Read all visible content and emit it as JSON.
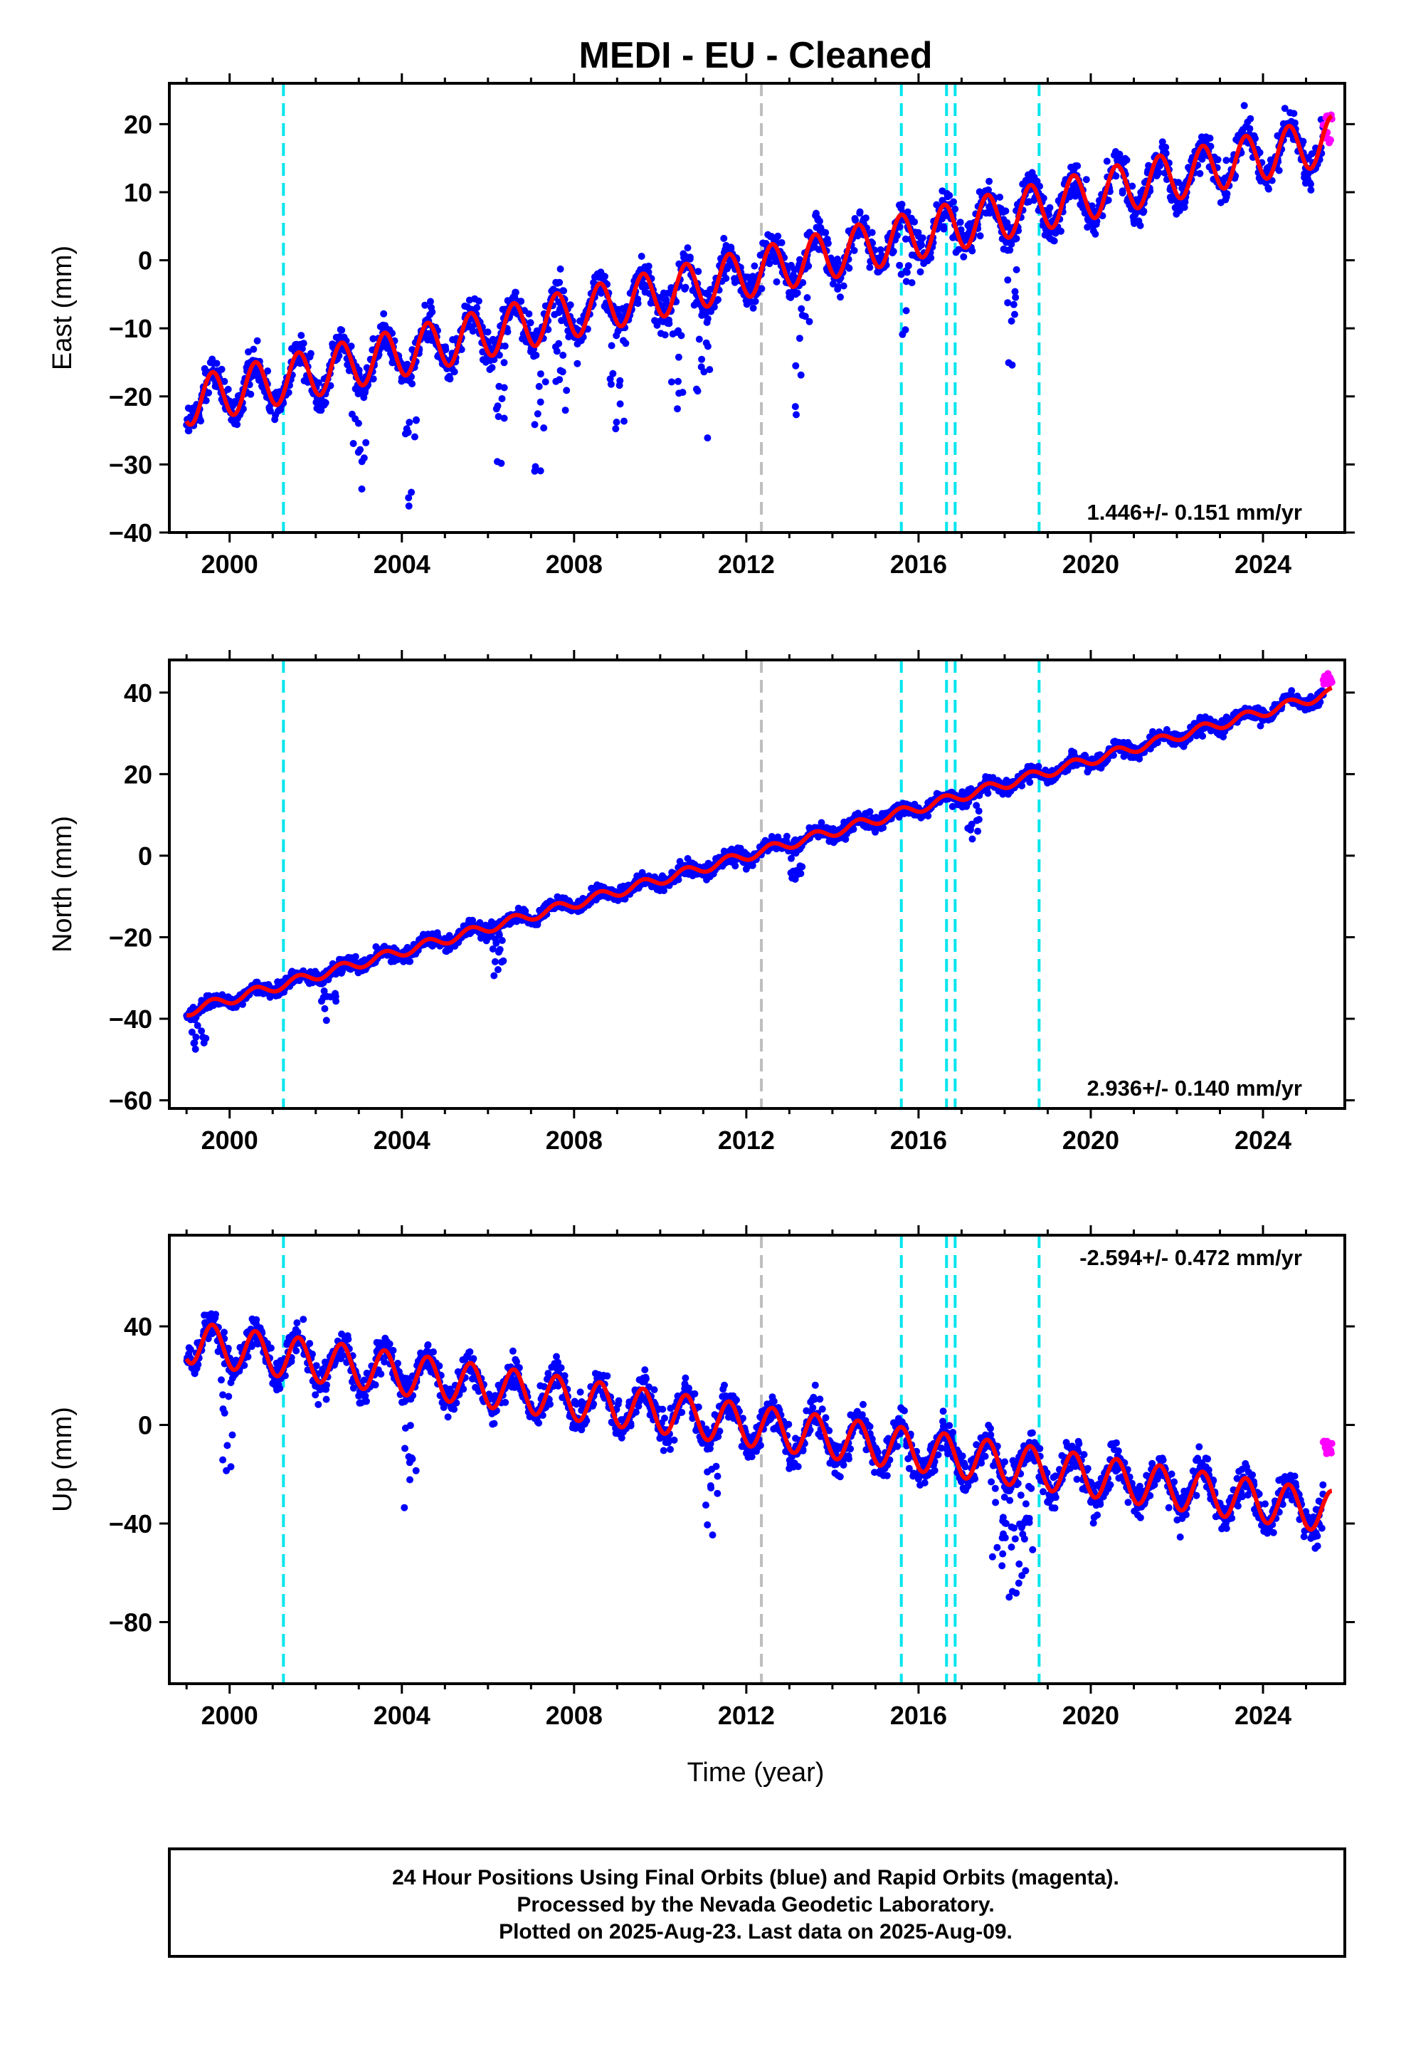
{
  "title": "MEDI  - EU - Cleaned",
  "xlabel": "Time (year)",
  "footer": {
    "line1": "24 Hour Positions Using Final Orbits (blue) and Rapid Orbits (magenta).",
    "line2": "Processed by the Nevada Geodetic Laboratory.",
    "line3": "Plotted on 2025-Aug-23. Last data on 2025-Aug-09."
  },
  "colors": {
    "final": "#0000ff",
    "rapid": "#ff00ff",
    "model": "#ff0000",
    "step_equipment": "#00e5ee",
    "step_other": "#bebebe"
  },
  "chart_data": [
    {
      "type": "scatter",
      "ylabel": "East (mm)",
      "xlim": [
        1998.6,
        2025.9
      ],
      "ylim": [
        -40,
        26
      ],
      "xticks": [
        2000,
        2004,
        2008,
        2012,
        2016,
        2020,
        2024
      ],
      "yticks": [
        -40,
        -30,
        -20,
        -10,
        0,
        10,
        20
      ],
      "rate_label": "1.446+/- 0.151 mm/yr",
      "rate_position": "bottom-right",
      "rate": 1.446,
      "offset_2012": -2.0,
      "annual_amplitude": 3.5,
      "scatter": 2.8,
      "outlier_years": [
        2003,
        2004.2,
        2006.3,
        2007.2,
        2007.7,
        2009,
        2010.4,
        2011,
        2013.3,
        2015.7,
        2018.2
      ],
      "rapid_range": [
        2025.4,
        2025.6
      ],
      "rapid_values": [
        17,
        22
      ],
      "vlines": [
        {
          "x": 2001.25,
          "kind": "equipment"
        },
        {
          "x": 2012.35,
          "kind": "other"
        },
        {
          "x": 2015.6,
          "kind": "equipment"
        },
        {
          "x": 2016.65,
          "kind": "equipment"
        },
        {
          "x": 2016.85,
          "kind": "equipment"
        },
        {
          "x": 2018.8,
          "kind": "equipment"
        }
      ]
    },
    {
      "type": "scatter",
      "ylabel": "North (mm)",
      "xlim": [
        1998.6,
        2025.9
      ],
      "ylim": [
        -62,
        48
      ],
      "xticks": [
        2000,
        2004,
        2008,
        2012,
        2016,
        2020,
        2024
      ],
      "yticks": [
        -60,
        -40,
        -20,
        0,
        20,
        40
      ],
      "rate_label": "2.936+/- 0.140 mm/yr",
      "rate_position": "bottom-right",
      "rate": 2.936,
      "offset_2012": 0.0,
      "annual_amplitude": 1.2,
      "scatter": 1.8,
      "outlier_years": [
        1999.3,
        2002.3,
        2006.2,
        2013.2,
        2017.3
      ],
      "rapid_range": [
        2025.4,
        2025.6
      ],
      "rapid_values": [
        42,
        45
      ],
      "vlines": [
        {
          "x": 2001.25,
          "kind": "equipment"
        },
        {
          "x": 2012.35,
          "kind": "other"
        },
        {
          "x": 2015.6,
          "kind": "equipment"
        },
        {
          "x": 2016.65,
          "kind": "equipment"
        },
        {
          "x": 2016.85,
          "kind": "equipment"
        },
        {
          "x": 2018.8,
          "kind": "equipment"
        }
      ]
    },
    {
      "type": "scatter",
      "ylabel": "Up (mm)",
      "xlim": [
        1998.6,
        2025.9
      ],
      "ylim": [
        -105,
        77
      ],
      "xticks": [
        2000,
        2004,
        2008,
        2012,
        2016,
        2020,
        2024
      ],
      "yticks": [
        -80,
        -40,
        0,
        40
      ],
      "rate_label": "-2.594+/- 0.472 mm/yr",
      "rate_position": "top-right",
      "rate": -2.594,
      "offset_2012": 0.0,
      "annual_amplitude": 8.5,
      "scatter": 7.0,
      "outlier_years": [
        1999.9,
        2004.2,
        2011.2,
        2017.8,
        2018.1,
        2018.4,
        2018.5
      ],
      "rapid_range": [
        2025.4,
        2025.6
      ],
      "rapid_values": [
        -12,
        -6
      ],
      "vlines": [
        {
          "x": 2001.25,
          "kind": "equipment"
        },
        {
          "x": 2012.35,
          "kind": "other"
        },
        {
          "x": 2015.6,
          "kind": "equipment"
        },
        {
          "x": 2016.65,
          "kind": "equipment"
        },
        {
          "x": 2016.85,
          "kind": "equipment"
        },
        {
          "x": 2018.8,
          "kind": "equipment"
        }
      ]
    }
  ]
}
